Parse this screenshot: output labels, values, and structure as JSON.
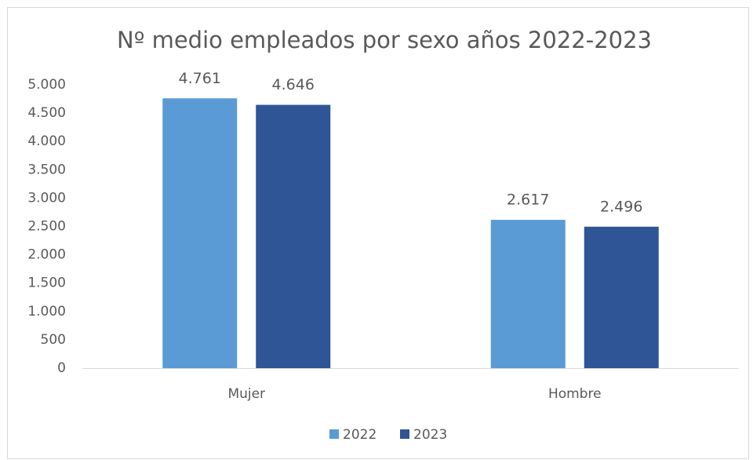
{
  "chart_data": {
    "type": "bar",
    "title": "Nº medio empleados por sexo años 2022-2023",
    "categories": [
      "Mujer",
      "Hombre"
    ],
    "series": [
      {
        "name": "2022",
        "color": "#5b9bd5",
        "values": [
          4761,
          2617
        ],
        "value_labels": [
          "4.761",
          "2.617"
        ]
      },
      {
        "name": "2023",
        "color": "#2f5597",
        "values": [
          4646,
          2496
        ],
        "value_labels": [
          "4.646",
          "2.496"
        ]
      }
    ],
    "ylim": [
      0,
      5000
    ],
    "yticks": [
      0,
      500,
      {
        "value": 1000,
        "label": "1.000"
      },
      {
        "value": 1500,
        "label": "1.500"
      },
      {
        "value": 2000,
        "label": "2.000"
      },
      {
        "value": 2500,
        "label": "2.500"
      },
      {
        "value": 3000,
        "label": "3.000"
      },
      {
        "value": 3500,
        "label": "3.500"
      },
      {
        "value": 4000,
        "label": "4.000"
      },
      {
        "value": 4500,
        "label": "4.500"
      },
      {
        "value": 5000,
        "label": "5.000"
      }
    ],
    "grid": false,
    "legend": "bottom"
  }
}
